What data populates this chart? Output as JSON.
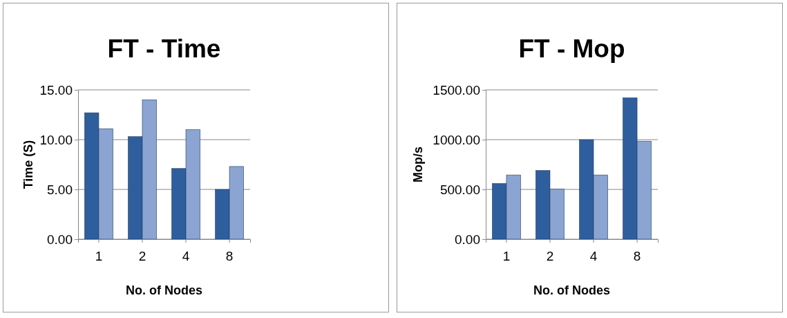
{
  "chart_data": [
    {
      "type": "bar",
      "title": "FT - Time",
      "xlabel": "No. of Nodes",
      "ylabel": "Time (S)",
      "categories": [
        "1",
        "2",
        "4",
        "8"
      ],
      "series": [
        {
          "color": "#2f5e9e",
          "values": [
            12.7,
            10.3,
            7.1,
            5.0
          ]
        },
        {
          "color": "#8ba4d2",
          "values": [
            11.1,
            14.0,
            11.0,
            7.3
          ]
        }
      ],
      "ylim": [
        0,
        15
      ],
      "yticks": [
        {
          "value": 0,
          "label": "0.00"
        },
        {
          "value": 5,
          "label": "5.00"
        },
        {
          "value": 10,
          "label": "10.00"
        },
        {
          "value": 15,
          "label": "15.00"
        }
      ],
      "grid": "y"
    },
    {
      "type": "bar",
      "title": "FT - Mop",
      "xlabel": "No. of Nodes",
      "ylabel": "Mop/s",
      "categories": [
        "1",
        "2",
        "4",
        "8"
      ],
      "series": [
        {
          "color": "#2f5e9e",
          "values": [
            560,
            690,
            1000,
            1420
          ]
        },
        {
          "color": "#8ba4d2",
          "values": [
            645,
            505,
            645,
            985
          ]
        }
      ],
      "ylim": [
        0,
        1500
      ],
      "yticks": [
        {
          "value": 0,
          "label": "0.00"
        },
        {
          "value": 500,
          "label": "500.00"
        },
        {
          "value": 1000,
          "label": "1000.00"
        },
        {
          "value": 1500,
          "label": "1500.00"
        }
      ],
      "grid": "y"
    }
  ]
}
